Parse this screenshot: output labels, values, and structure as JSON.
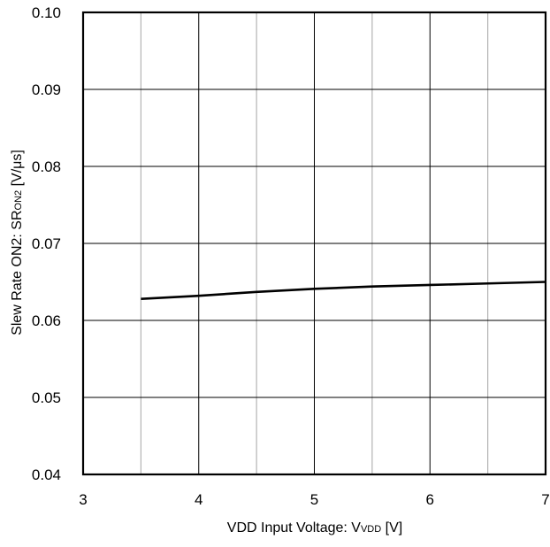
{
  "chart_data": {
    "type": "line",
    "title": "",
    "xlabel": {
      "main": "VDD Input Voltage: V",
      "subscript": "VDD",
      "unit": " [V]"
    },
    "ylabel": {
      "main": "Slew Rate ON2: SR",
      "subscript": "ON2",
      "unit": " [V/μs]"
    },
    "xlim": [
      3,
      7
    ],
    "ylim": [
      0.04,
      0.1
    ],
    "xticks": [
      3,
      4,
      5,
      6,
      7
    ],
    "xtick_labels": [
      "3",
      "4",
      "5",
      "6",
      "7"
    ],
    "yticks": [
      0.04,
      0.05,
      0.06,
      0.07,
      0.08,
      0.09,
      0.1
    ],
    "ytick_labels": [
      "0.04",
      "0.05",
      "0.06",
      "0.07",
      "0.08",
      "0.09",
      "0.10"
    ],
    "minor_xgrid": [
      3.5,
      4.5,
      5.5,
      6.5
    ],
    "grid": true,
    "series": [
      {
        "x": [
          3.5,
          4.0,
          4.5,
          5.0,
          5.5,
          6.0,
          6.5,
          7.0
        ],
        "y": [
          0.0628,
          0.0632,
          0.0637,
          0.0641,
          0.0644,
          0.0646,
          0.0648,
          0.065
        ],
        "color": "#000000"
      }
    ]
  }
}
